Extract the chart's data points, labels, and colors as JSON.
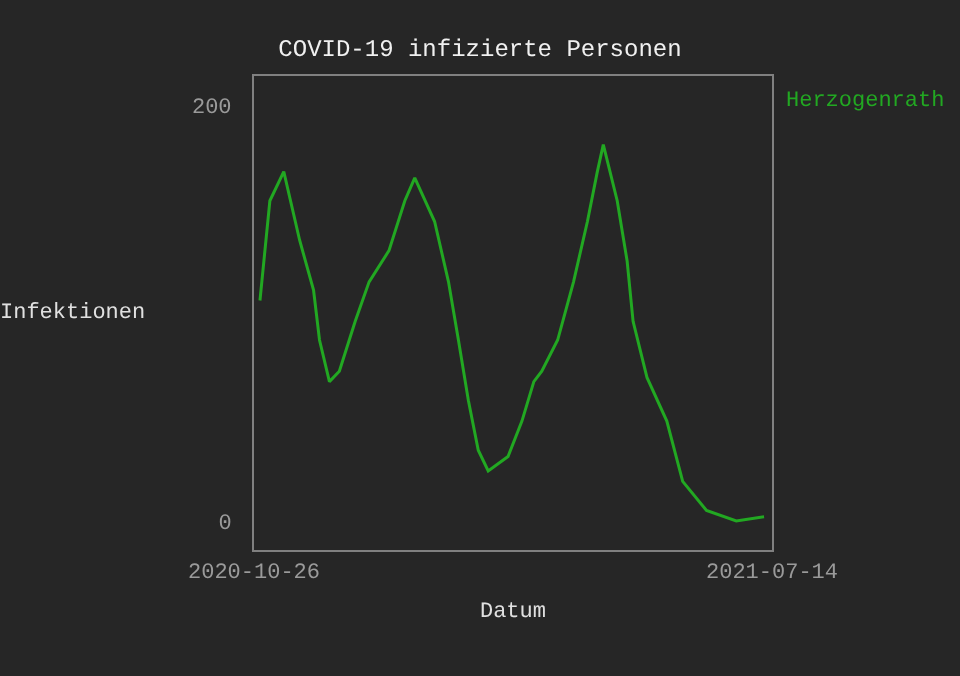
{
  "chart_data": {
    "type": "line",
    "title": "COVID-19 infizierte Personen",
    "xlabel": "Datum",
    "ylabel": "Infektionen",
    "series": [
      {
        "name": "Herzogenrath",
        "color": "#22a822",
        "x": [
          "2020-10-29",
          "2020-11-03",
          "2020-11-10",
          "2020-11-18",
          "2020-11-25",
          "2020-11-28",
          "2020-12-03",
          "2020-12-08",
          "2020-12-16",
          "2020-12-23",
          "2021-01-02",
          "2021-01-10",
          "2021-01-15",
          "2021-01-25",
          "2021-02-01",
          "2021-02-06",
          "2021-02-11",
          "2021-02-16",
          "2021-02-21",
          "2021-03-03",
          "2021-03-10",
          "2021-03-16",
          "2021-03-20",
          "2021-03-28",
          "2021-04-05",
          "2021-04-12",
          "2021-04-17",
          "2021-04-20",
          "2021-04-27",
          "2021-05-02",
          "2021-05-05",
          "2021-05-12",
          "2021-05-22",
          "2021-05-30",
          "2021-06-11",
          "2021-06-26",
          "2021-07-10"
        ],
        "values": [
          106,
          154,
          168,
          135,
          111,
          87,
          67,
          72,
          96,
          115,
          130,
          154,
          165,
          144,
          115,
          87,
          58,
          34,
          24,
          31,
          48,
          67,
          72,
          87,
          115,
          144,
          168,
          181,
          154,
          125,
          96,
          69,
          48,
          19,
          5,
          0,
          2
        ]
      }
    ],
    "xlim": [
      "2020-10-26",
      "2021-07-14"
    ],
    "xticks": [
      "2020-10-26",
      "2021-07-14"
    ],
    "ylim": [
      -14,
      214
    ],
    "yticks": [
      0,
      200
    ],
    "grid": false,
    "legend": "top right"
  }
}
